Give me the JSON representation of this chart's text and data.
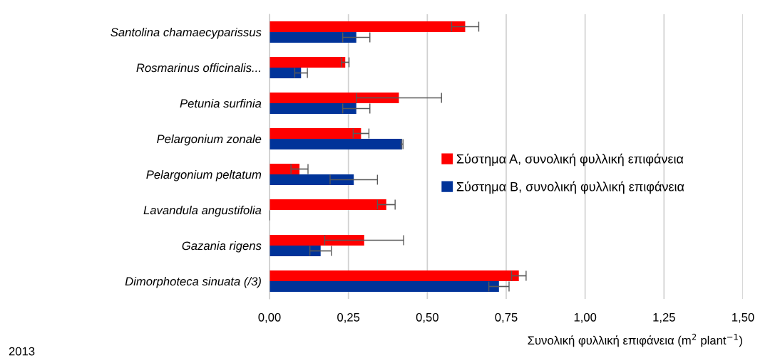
{
  "chart_data": {
    "type": "bar",
    "orientation": "horizontal",
    "categories": [
      "Santolina chamaecyparissus",
      "Rosmarinus officinalis...",
      "Petunia surfinia",
      "Pelargonium zonale",
      "Pelargonium peltatum",
      "Lavandula angustifolia",
      "Gazania rigens",
      "Dimorphoteca sinuata (/3)"
    ],
    "series": [
      {
        "name": "Σύστημα Α, συνολική φυλλική επιφάνεια",
        "color": "#ff0000",
        "values": [
          0.62,
          0.24,
          0.41,
          0.29,
          0.095,
          0.37,
          0.3,
          0.79
        ],
        "errors": [
          0.043,
          0.012,
          0.135,
          0.025,
          0.027,
          0.028,
          0.125,
          0.023
        ]
      },
      {
        "name": "Σύστημα Β, συνολική φυλλική επιφάνεια",
        "color": "#003399",
        "values": [
          0.275,
          0.1,
          0.275,
          0.42,
          0.267,
          0,
          0.162,
          0.727
        ],
        "errors": [
          0.043,
          0.02,
          0.043,
          0.003,
          0.075,
          0,
          0.034,
          0.032
        ]
      }
    ],
    "xlabel": "Συνολική φυλλική επιφάνεια (m$^{2}$ plant$^{−1}$)",
    "xlim": [
      0,
      1.5
    ],
    "xticks": [
      {
        "value": 0,
        "label": "0,00"
      },
      {
        "value": 0.25,
        "label": "0,25"
      },
      {
        "value": 0.5,
        "label": "0,50"
      },
      {
        "value": 0.75,
        "label": "0,75"
      },
      {
        "value": 1.0,
        "label": "1,00"
      },
      {
        "value": 1.25,
        "label": "1,25"
      },
      {
        "value": 1.5,
        "label": "1,50"
      }
    ],
    "grid": "x",
    "legend": "right",
    "annotations": [
      "2013"
    ]
  }
}
